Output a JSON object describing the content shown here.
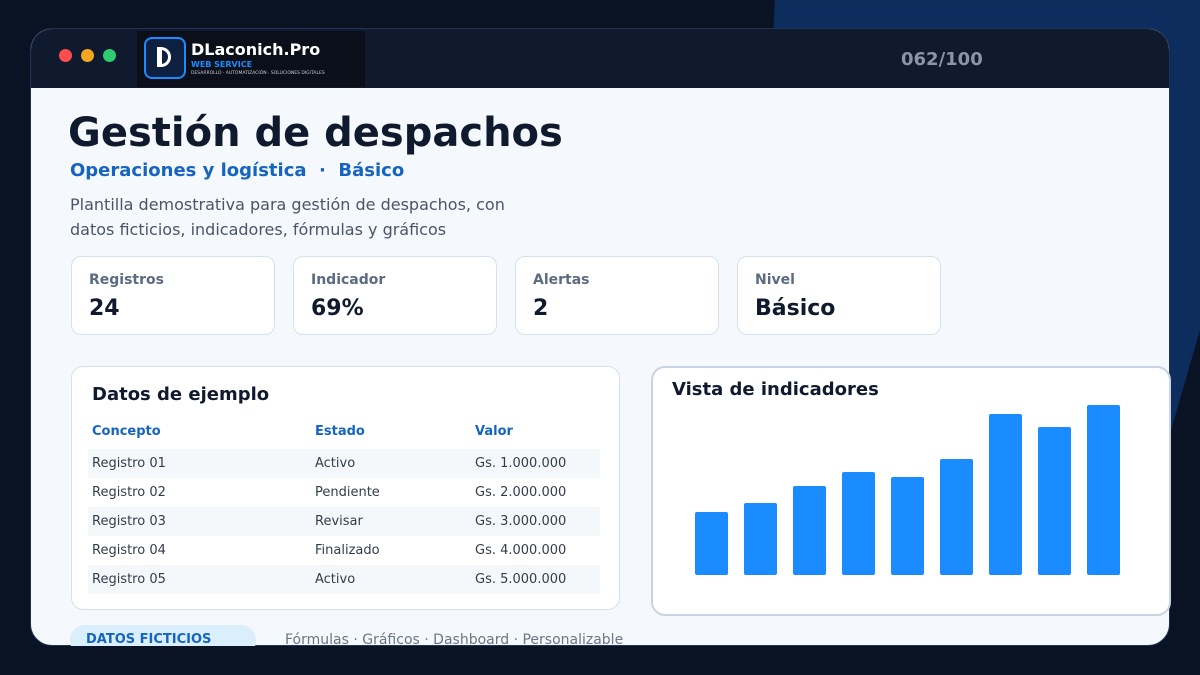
{
  "header": {
    "brand": "DLaconich.Pro",
    "tagline": "WEB SERVICE",
    "services": "DESARROLLO · AUTOMATIZACIÓN · SOLUCIONES DIGITALES",
    "counter": "062/100"
  },
  "page": {
    "title": "Gestión de despachos",
    "subtitle": "Operaciones y logística  ·  Básico",
    "description": "Plantilla demostrativa para gestión de despachos, con datos ficticios, indicadores, fórmulas y gráficos"
  },
  "cards": [
    {
      "label": "Registros",
      "value": "24"
    },
    {
      "label": "Indicador",
      "value": "69%"
    },
    {
      "label": "Alertas",
      "value": "2"
    },
    {
      "label": "Nivel",
      "value": "Básico"
    }
  ],
  "table": {
    "title": "Datos de ejemplo",
    "columns": [
      "Concepto",
      "Estado",
      "Valor"
    ],
    "rows": [
      [
        "Registro 01",
        "Activo",
        "Gs. 1.000.000"
      ],
      [
        "Registro 02",
        "Pendiente",
        "Gs. 2.000.000"
      ],
      [
        "Registro 03",
        "Revisar",
        "Gs. 3.000.000"
      ],
      [
        "Registro 04",
        "Finalizado",
        "Gs. 4.000.000"
      ],
      [
        "Registro 05",
        "Activo",
        "Gs. 5.000.000"
      ]
    ]
  },
  "chart_data": {
    "type": "bar",
    "title": "Vista de indicadores",
    "values": [
      63,
      72,
      89,
      103,
      98,
      116,
      161,
      148,
      170
    ],
    "color": "#1a8cff",
    "ylim": [
      0,
      180
    ]
  },
  "footer": {
    "badge": "DATOS FICTICIOS",
    "features": "Fórmulas · Gráficos · Dashboard · Personalizable"
  }
}
